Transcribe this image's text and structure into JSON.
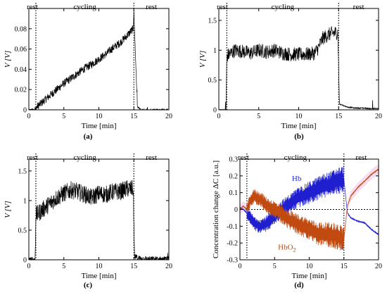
{
  "chart_data": [
    {
      "type": "line",
      "panel": "(a)",
      "xlabel": "Time [min]",
      "ylabel": "V [V]",
      "xlim": [
        0,
        20
      ],
      "ylim": [
        0,
        0.1
      ],
      "xticks": [
        "0",
        "5",
        "10",
        "15",
        "20"
      ],
      "yticks": [
        "0",
        "0.02",
        "0.04",
        "0.06",
        "0.08"
      ],
      "phases": [
        "rest",
        "cycling",
        "rest"
      ],
      "phase_boundaries": [
        1,
        15
      ],
      "series": [
        {
          "color": "#000000",
          "x": [
            0,
            0.5,
            0.9,
            1.0,
            1.5,
            2,
            3,
            4,
            5,
            6,
            7,
            8,
            9,
            10,
            11,
            12,
            13,
            14,
            14.9,
            15.0,
            15.5,
            16,
            17,
            18,
            19,
            20
          ],
          "y": [
            0,
            0,
            0,
            0.002,
            0.005,
            0.008,
            0.014,
            0.02,
            0.026,
            0.031,
            0.036,
            0.041,
            0.045,
            0.05,
            0.055,
            0.061,
            0.066,
            0.073,
            0.08,
            0.097,
            0.003,
            0,
            0,
            0,
            0,
            0
          ]
        }
      ]
    },
    {
      "type": "line",
      "panel": "(b)",
      "xlabel": "Time [min]",
      "ylabel": "V [V]",
      "xlim": [
        0,
        20
      ],
      "ylim": [
        0,
        1.7
      ],
      "xticks": [
        "0",
        "5",
        "10",
        "15",
        "20"
      ],
      "yticks": [
        "0",
        "0.5",
        "1",
        "1.5"
      ],
      "phases": [
        "rest",
        "cycling",
        "rest"
      ],
      "phase_boundaries": [
        1,
        15
      ],
      "series": [
        {
          "color": "#000000",
          "x": [
            0,
            0.9,
            1.0,
            1.5,
            2,
            3,
            4,
            5,
            6,
            7,
            8,
            9,
            10,
            11,
            12,
            12.5,
            13,
            14,
            14.9,
            15.1,
            16,
            17,
            18,
            19,
            20
          ],
          "y": [
            0,
            0,
            0.9,
            0.95,
            1.0,
            0.98,
            0.95,
            1.0,
            0.97,
            1.0,
            0.95,
            0.93,
            0.93,
            0.93,
            0.95,
            1.05,
            1.2,
            1.28,
            1.3,
            0.1,
            0.05,
            0.03,
            0.03,
            0.02,
            0.02
          ]
        }
      ]
    },
    {
      "type": "line",
      "panel": "(c)",
      "xlabel": "Time [min]",
      "ylabel": "V [V]",
      "xlim": [
        0,
        20
      ],
      "ylim": [
        0,
        1.7
      ],
      "xticks": [
        "0",
        "5",
        "10",
        "15",
        "20"
      ],
      "yticks": [
        "0",
        "0.5",
        "1",
        "1.5"
      ],
      "phases": [
        "rest",
        "cycling",
        "rest"
      ],
      "phase_boundaries": [
        1,
        15
      ],
      "series": [
        {
          "color": "#000000",
          "x": [
            0,
            0.9,
            1.0,
            1.5,
            2,
            3,
            4,
            5,
            6,
            7,
            8,
            9,
            10,
            11,
            12,
            13,
            14,
            14.9,
            15.1,
            16,
            17,
            18,
            19,
            20
          ],
          "y": [
            0,
            0,
            0.75,
            0.8,
            0.85,
            0.95,
            1.05,
            1.12,
            1.18,
            1.15,
            1.1,
            1.05,
            1.12,
            1.1,
            1.15,
            1.15,
            1.2,
            1.2,
            0.05,
            0.02,
            0.01,
            0.01,
            0.01,
            0.01
          ]
        }
      ]
    },
    {
      "type": "line",
      "panel": "(d)",
      "xlabel": "Time [min]",
      "ylabel": "Concentration change ΔC [a.u.]",
      "xlim": [
        0,
        20
      ],
      "ylim": [
        -0.3,
        0.3
      ],
      "xticks": [
        "0",
        "5",
        "10",
        "15",
        "20"
      ],
      "yticks": [
        "-0.3",
        "-0.2",
        "-0.1",
        "0",
        "0.1",
        "0.2",
        "0.3"
      ],
      "phases": [
        "rest",
        "cycling",
        "rest"
      ],
      "phase_boundaries": [
        1,
        15
      ],
      "series": [
        {
          "name": "Hb",
          "color": "#1f1fd0",
          "x": [
            0,
            0.5,
            1.0,
            1.5,
            2,
            3,
            4,
            5,
            6,
            7,
            8,
            9,
            10,
            11,
            12,
            13,
            14,
            15,
            15.5,
            16,
            17,
            18,
            19,
            20
          ],
          "y": [
            0.01,
            0.0,
            -0.02,
            -0.05,
            -0.08,
            -0.1,
            -0.08,
            -0.04,
            0.0,
            0.03,
            0.06,
            0.08,
            0.1,
            0.12,
            0.14,
            0.15,
            0.17,
            0.18,
            -0.02,
            -0.05,
            -0.07,
            -0.08,
            -0.12,
            -0.15
          ]
        },
        {
          "name": "HbO2",
          "color": "#c04a10",
          "x": [
            0,
            0.5,
            1.0,
            1.5,
            2,
            3,
            4,
            5,
            6,
            7,
            8,
            9,
            10,
            11,
            12,
            13,
            14,
            15,
            15.5,
            16,
            17,
            18,
            19,
            20
          ],
          "y": [
            0.0,
            0.02,
            0.0,
            0.05,
            0.08,
            0.06,
            0.02,
            0.0,
            -0.03,
            -0.06,
            -0.08,
            -0.1,
            -0.12,
            -0.14,
            -0.15,
            -0.15,
            -0.16,
            -0.18,
            0.02,
            0.08,
            0.13,
            0.17,
            0.21,
            0.24
          ]
        }
      ],
      "labels": {
        "hb": "Hb",
        "hbo2_main": "HbO",
        "hbo2_sub": "2"
      }
    }
  ]
}
